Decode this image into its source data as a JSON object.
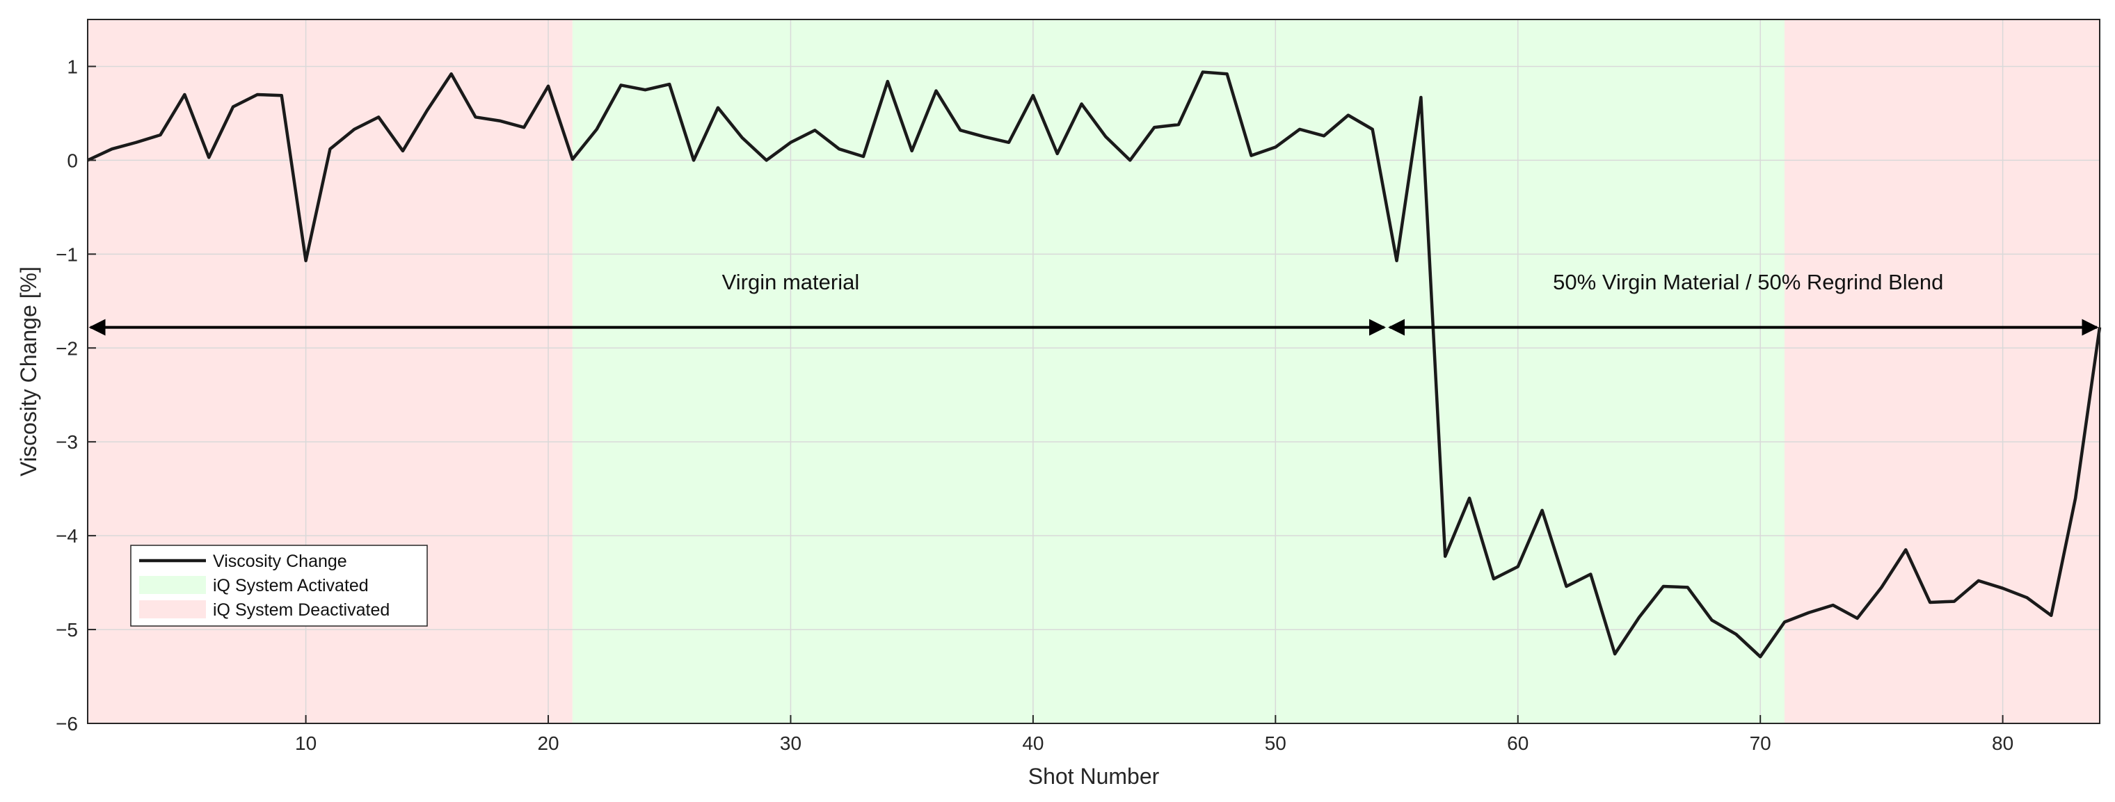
{
  "chart_data": {
    "type": "line",
    "xlabel": "Shot Number",
    "ylabel": "Viscosity Change [%]",
    "xlim": [
      1,
      84
    ],
    "ylim": [
      -6,
      1.5
    ],
    "xticks": [
      10,
      20,
      30,
      40,
      50,
      60,
      70,
      80
    ],
    "yticks": [
      -6,
      -5,
      -4,
      -3,
      -2,
      -1,
      0,
      1
    ],
    "grid": true,
    "legend_position": "bottom-left",
    "colors": {
      "line": "#1a1a1a",
      "activated": "#e6ffe6",
      "deactivated": "#ffe6e6",
      "grid": "#d9d9d9"
    },
    "regions": [
      {
        "name": "iQ System Deactivated",
        "x0": 1,
        "x1": 21,
        "color": "#ffe6e6"
      },
      {
        "name": "iQ System Activated",
        "x0": 21,
        "x1": 71,
        "color": "#e6ffe6"
      },
      {
        "name": "iQ System Deactivated",
        "x0": 71,
        "x1": 84,
        "color": "#ffe6e6"
      }
    ],
    "annotations": [
      {
        "text": "Virgin material",
        "x": 30,
        "y": -1.3,
        "arrow": [
          1,
          54.6
        ],
        "arrow_y": -1.78
      },
      {
        "text": "50% Virgin Material / 50% Regrind Blend",
        "x": 69.5,
        "y": -1.3,
        "arrow": [
          54.6,
          84
        ],
        "arrow_y": -1.78
      }
    ],
    "legend": [
      "Viscosity Change",
      "iQ System Activated",
      "iQ System Deactivated"
    ],
    "series": [
      {
        "name": "Viscosity Change",
        "x": [
          1,
          2,
          3,
          4,
          5,
          6,
          7,
          8,
          9,
          10,
          11,
          12,
          13,
          14,
          15,
          16,
          17,
          18,
          19,
          20,
          21,
          22,
          23,
          24,
          25,
          26,
          27,
          28,
          29,
          30,
          31,
          32,
          33,
          34,
          35,
          36,
          37,
          38,
          39,
          40,
          41,
          42,
          43,
          44,
          45,
          46,
          47,
          48,
          49,
          50,
          51,
          52,
          53,
          54,
          55,
          56,
          57,
          58,
          59,
          60,
          61,
          62,
          63,
          64,
          65,
          66,
          67,
          68,
          69,
          70,
          71,
          72,
          73,
          74,
          75,
          76,
          77,
          78,
          79,
          80,
          81,
          82,
          83,
          84
        ],
        "values": [
          0.0,
          0.12,
          0.19,
          0.27,
          0.7,
          0.03,
          0.57,
          0.7,
          0.69,
          -1.07,
          0.12,
          0.33,
          0.46,
          0.1,
          0.53,
          0.92,
          0.46,
          0.42,
          0.35,
          0.79,
          0.01,
          0.33,
          0.8,
          0.75,
          0.81,
          0.0,
          0.56,
          0.24,
          0.0,
          0.19,
          0.32,
          0.12,
          0.04,
          0.84,
          0.1,
          0.74,
          0.32,
          0.25,
          0.19,
          0.69,
          0.07,
          0.6,
          0.25,
          0.0,
          0.35,
          0.38,
          0.94,
          0.92,
          0.05,
          0.14,
          0.33,
          0.26,
          0.48,
          0.33,
          -1.07,
          0.67,
          -4.22,
          -3.6,
          -4.46,
          -4.33,
          -3.73,
          -4.54,
          -4.41,
          -5.26,
          -4.87,
          -4.54,
          -4.55,
          -4.9,
          -5.05,
          -5.29,
          -4.92,
          -4.82,
          -4.74,
          -4.88,
          -4.55,
          -4.15,
          -4.71,
          -4.7,
          -4.48,
          -4.56,
          -4.66,
          -4.85,
          -3.6,
          -1.78
        ]
      }
    ]
  }
}
